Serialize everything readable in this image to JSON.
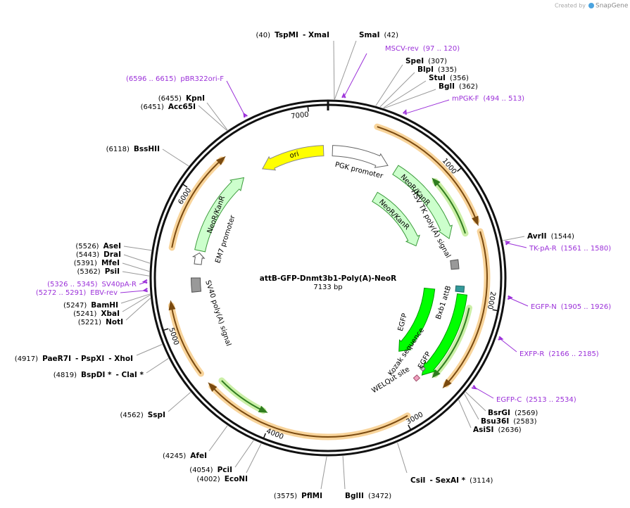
{
  "logo": {
    "created_by": "Created by",
    "brand": "SnapGene"
  },
  "plasmid": {
    "name": "attB-GFP-Dnmt3b1-Poly(A)-NeoR",
    "length": "7133 bp",
    "ticks": [
      1000,
      2000,
      3000,
      4000,
      5000,
      6000,
      7000
    ]
  },
  "sites": [
    {
      "position": "(40)",
      "names": [
        "TspMI",
        "- XmaI"
      ]
    },
    {
      "position": "(42)",
      "names": [
        "SmaI"
      ]
    },
    {
      "position": "(307)",
      "names": [
        "SpeI"
      ]
    },
    {
      "position": "(335)",
      "names": [
        "BlpI"
      ]
    },
    {
      "position": "(356)",
      "names": [
        "StuI"
      ]
    },
    {
      "position": "(362)",
      "names": [
        "BglI"
      ]
    },
    {
      "position": "(1544)",
      "names": [
        "AvrII"
      ]
    },
    {
      "position": "(2569)",
      "names": [
        "BsrGI"
      ]
    },
    {
      "position": "(2583)",
      "names": [
        "Bsu36I"
      ]
    },
    {
      "position": "(2636)",
      "names": [
        "AsiSI"
      ]
    },
    {
      "position": "(3114)",
      "names": [
        "CsiI",
        "- SexAI *"
      ]
    },
    {
      "position": "(3472)",
      "names": [
        "BglII"
      ]
    },
    {
      "position": "(3575)",
      "names": [
        "PflMI"
      ]
    },
    {
      "position": "(4002)",
      "names": [
        "EcoNI"
      ]
    },
    {
      "position": "(4054)",
      "names": [
        "PciI"
      ]
    },
    {
      "position": "(4245)",
      "names": [
        "AfeI"
      ]
    },
    {
      "position": "(4562)",
      "names": [
        "SspI"
      ]
    },
    {
      "position": "(4819)",
      "names": [
        "BspDI *",
        "- ClaI *"
      ]
    },
    {
      "position": "(4917)",
      "names": [
        "PaeR7I",
        "- PspXI",
        "- XhoI"
      ]
    },
    {
      "position": "(5221)",
      "names": [
        "NotI"
      ]
    },
    {
      "position": "(5241)",
      "names": [
        "XbaI"
      ]
    },
    {
      "position": "(5247)",
      "names": [
        "BamHI"
      ]
    },
    {
      "position": "(5362)",
      "names": [
        "PsiI"
      ]
    },
    {
      "position": "(5391)",
      "names": [
        "MfeI"
      ]
    },
    {
      "position": "(5443)",
      "names": [
        "DraI"
      ]
    },
    {
      "position": "(5526)",
      "names": [
        "AseI"
      ]
    },
    {
      "position": "(6118)",
      "names": [
        "BssHII"
      ]
    },
    {
      "position": "(6451)",
      "names": [
        "Acc65I"
      ]
    },
    {
      "position": "(6455)",
      "names": [
        "KpnI"
      ]
    }
  ],
  "primers": [
    {
      "name": "MSCV-rev",
      "range": "(97 .. 120)"
    },
    {
      "name": "mPGK-F",
      "range": "(494 .. 513)"
    },
    {
      "name": "TK-pA-R",
      "range": "(1561 .. 1580)"
    },
    {
      "name": "EGFP-N",
      "range": "(1905 .. 1926)"
    },
    {
      "name": "EXFP-R",
      "range": "(2166 .. 2185)"
    },
    {
      "name": "EGFP-C",
      "range": "(2513 .. 2534)"
    },
    {
      "name": "SV40pA-R",
      "range": "(5326 .. 5345)"
    },
    {
      "name": "EBV-rev",
      "range": "(5272 .. 5291)"
    },
    {
      "name": "pBR322ori-F",
      "range": "(6596 .. 6615)"
    }
  ],
  "features": [
    {
      "label": "ori"
    },
    {
      "label": "PGK promoter"
    },
    {
      "label": "NeoR/KanR"
    },
    {
      "label": "HSV TK poly(A) signal"
    },
    {
      "label": "NeoR/KanR"
    },
    {
      "label": "EGFP"
    },
    {
      "label": "Bxb1 attB"
    },
    {
      "label": "Kozak sequence"
    },
    {
      "label": "EGFP"
    },
    {
      "label": "WELQut site"
    },
    {
      "label": "NeoR/KanR"
    },
    {
      "label": "EM7 promoter"
    },
    {
      "label": "SV40 poly(A) signal"
    }
  ]
}
